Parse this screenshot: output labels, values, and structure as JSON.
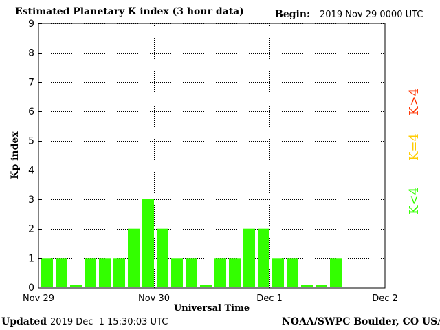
{
  "header": {
    "title": "Estimated Planetary K index (3 hour data)",
    "begin_label": "Begin:",
    "begin_value": "2019 Nov 29 0000 UTC"
  },
  "footer": {
    "updated_label": "Updated",
    "updated_value": "2019 Dec  1 15:30:03 UTC",
    "credit": "NOAA/SWPC Boulder, CO USA"
  },
  "legend": [
    {
      "label": "K>4",
      "color": "#ff3300"
    },
    {
      "label": "K=4",
      "color": "#ffcc00"
    },
    {
      "label": "K<4",
      "color": "#33ff00"
    }
  ],
  "colors": {
    "bar": "#33ff00"
  },
  "chart_data": {
    "type": "bar",
    "ylabel": "Kp index",
    "xlabel": "Universal Time",
    "ylim": [
      0,
      9
    ],
    "yticks": [
      0,
      1,
      2,
      3,
      4,
      5,
      6,
      7,
      8,
      9
    ],
    "xtick_labels": [
      "Nov 29",
      "Nov 30",
      "Dec 1",
      "Dec 2"
    ],
    "grid": "dotted",
    "bar_interval_hours": 3,
    "values": [
      1,
      1,
      0.05,
      1,
      1,
      1,
      2,
      3,
      2,
      1,
      1,
      0.05,
      1,
      1,
      2,
      2,
      1,
      1,
      0.05,
      0.05,
      1
    ]
  }
}
